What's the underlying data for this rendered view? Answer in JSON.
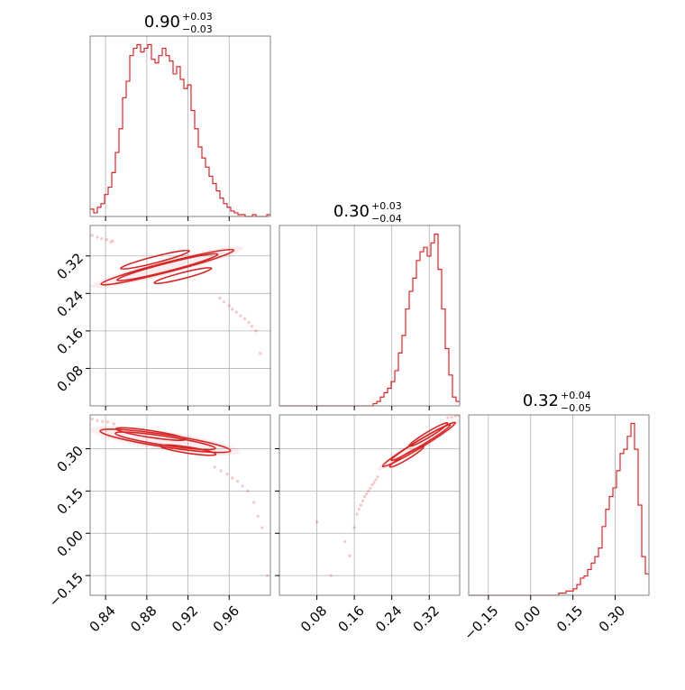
{
  "colors": {
    "accent": "#d62728",
    "frame": "#808080",
    "grid": "#b0b0b0"
  },
  "titles": [
    {
      "value": "0.90",
      "plus": "+0.03",
      "minus": "−0.03"
    },
    {
      "value": "0.30",
      "plus": "+0.03",
      "minus": "−0.04"
    },
    {
      "value": "0.32",
      "plus": "+0.04",
      "minus": "−0.05"
    }
  ],
  "chart_data": {
    "type": "corner",
    "grid": true,
    "parameters": [
      {
        "range": [
          0.825,
          1.0
        ],
        "ticks": [
          0.84,
          0.88,
          0.92,
          0.96
        ],
        "tick_labels": [
          "0.84",
          "0.88",
          "0.92",
          "0.96"
        ]
      },
      {
        "range": [
          0.0,
          0.385
        ],
        "ticks": [
          0.08,
          0.16,
          0.24,
          0.32
        ],
        "tick_labels": [
          "0.08",
          "0.16",
          "0.24",
          "0.32"
        ]
      },
      {
        "range": [
          -0.22,
          0.42
        ],
        "ticks": [
          -0.15,
          0.0,
          0.15,
          0.3
        ],
        "tick_labels": [
          "−0.15",
          "0.00",
          "0.15",
          "0.30"
        ]
      }
    ],
    "histograms": [
      {
        "param": 0,
        "edges": [
          0.825,
          0.8285,
          0.832,
          0.8355,
          0.839,
          0.8425,
          0.846,
          0.8495,
          0.853,
          0.8565,
          0.86,
          0.8635,
          0.867,
          0.8705,
          0.874,
          0.8775,
          0.881,
          0.8845,
          0.888,
          0.8915,
          0.895,
          0.8985,
          0.902,
          0.9055,
          0.909,
          0.9125,
          0.916,
          0.9195,
          0.923,
          0.9265,
          0.93,
          0.9335,
          0.937,
          0.9405,
          0.944,
          0.9475,
          0.951,
          0.9545,
          0.958,
          0.9615,
          0.965,
          0.9685,
          0.972,
          0.9755,
          0.979,
          0.9825,
          0.986,
          0.9895,
          0.993,
          0.9965,
          1.0
        ],
        "counts": [
          4,
          2,
          5,
          7,
          12,
          16,
          24,
          35,
          48,
          65,
          74,
          88,
          92,
          94,
          90,
          92,
          94,
          86,
          84,
          88,
          92,
          88,
          85,
          78,
          82,
          75,
          70,
          72,
          58,
          48,
          38,
          32,
          27,
          22,
          18,
          14,
          10,
          7,
          5,
          3,
          2,
          1,
          1,
          0,
          0,
          1,
          0,
          0,
          0,
          1
        ]
      },
      {
        "param": 1,
        "edges": [
          0.0,
          0.0077,
          0.0154,
          0.0231,
          0.0308,
          0.0385,
          0.0462,
          0.0539,
          0.0616,
          0.0693,
          0.077,
          0.0847,
          0.0924,
          0.1001,
          0.1078,
          0.1155,
          0.1232,
          0.1309,
          0.1386,
          0.1463,
          0.154,
          0.1617,
          0.1694,
          0.1771,
          0.1848,
          0.1925,
          0.2002,
          0.2079,
          0.2156,
          0.2233,
          0.231,
          0.2387,
          0.2464,
          0.2541,
          0.2618,
          0.2695,
          0.2772,
          0.2849,
          0.2926,
          0.3003,
          0.308,
          0.3157,
          0.3234,
          0.3311,
          0.3388,
          0.3465,
          0.3542,
          0.3619,
          0.3696,
          0.3773,
          0.385
        ],
        "counts": [
          0,
          0,
          0,
          0,
          0,
          0,
          0,
          0,
          0,
          0,
          0,
          0,
          0,
          0,
          0,
          0,
          0,
          0,
          0,
          0,
          0,
          0,
          0,
          0,
          0,
          0,
          1,
          2,
          4,
          6,
          8,
          11,
          16,
          24,
          32,
          44,
          52,
          58,
          66,
          70,
          72,
          68,
          74,
          78,
          62,
          44,
          26,
          14,
          4,
          2
        ]
      },
      {
        "param": 2,
        "edges": [
          -0.22,
          -0.2072,
          -0.1944,
          -0.1816,
          -0.1688,
          -0.156,
          -0.1432,
          -0.1304,
          -0.1176,
          -0.1048,
          -0.092,
          -0.0792,
          -0.0664,
          -0.0536,
          -0.0408,
          -0.028,
          -0.0152,
          -0.0024,
          0.0104,
          0.0232,
          0.036,
          0.0488,
          0.0616,
          0.0744,
          0.0872,
          0.1,
          0.1128,
          0.1256,
          0.1384,
          0.1512,
          0.164,
          0.1768,
          0.1896,
          0.2024,
          0.2152,
          0.228,
          0.2408,
          0.2536,
          0.2664,
          0.2792,
          0.292,
          0.3048,
          0.3176,
          0.3304,
          0.3432,
          0.356,
          0.3688,
          0.3816,
          0.3944,
          0.4072,
          0.42
        ],
        "counts": [
          0,
          0,
          0,
          0,
          0,
          0,
          0,
          0,
          0,
          0,
          0,
          0,
          0,
          0,
          0,
          0,
          0,
          0,
          0,
          0,
          0,
          0,
          0,
          0,
          0,
          1,
          1,
          2,
          2,
          3,
          5,
          8,
          9,
          12,
          15,
          18,
          22,
          32,
          40,
          46,
          50,
          58,
          66,
          68,
          74,
          80,
          68,
          42,
          18,
          10
        ]
      }
    ],
    "scatter_panels": [
      {
        "x_param": 0,
        "y_param": 1,
        "points": [
          [
            0.827,
            0.364
          ],
          [
            0.832,
            0.36
          ],
          [
            0.836,
            0.357
          ],
          [
            0.841,
            0.355
          ],
          [
            0.845,
            0.35
          ],
          [
            0.847,
            0.352
          ],
          [
            0.951,
            0.23
          ],
          [
            0.955,
            0.222
          ],
          [
            0.96,
            0.214
          ],
          [
            0.963,
            0.206
          ],
          [
            0.967,
            0.2
          ],
          [
            0.971,
            0.192
          ],
          [
            0.975,
            0.186
          ],
          [
            0.979,
            0.178
          ],
          [
            0.982,
            0.17
          ],
          [
            0.986,
            0.16
          ],
          [
            0.99,
            0.112
          ]
        ],
        "contours": [
          {
            "center": [
              0.9,
              0.296
            ],
            "rx": 0.058,
            "ry": 0.0105,
            "angle_deg": -150.6
          },
          {
            "center": [
              0.9,
              0.296
            ],
            "rx": 0.044,
            "ry": 0.0085,
            "angle_deg": -150.6
          },
          {
            "center": [
              0.888,
              0.312
            ],
            "rx": 0.03,
            "ry": 0.0068,
            "angle_deg": -150.6
          },
          {
            "center": [
              0.915,
              0.278
            ],
            "rx": 0.025,
            "ry": 0.0064,
            "angle_deg": -150.6
          }
        ]
      },
      {
        "x_param": 0,
        "y_param": 2,
        "points": [
          [
            0.827,
            0.405
          ],
          [
            0.832,
            0.4
          ],
          [
            0.837,
            0.397
          ],
          [
            0.842,
            0.395
          ],
          [
            0.848,
            0.388
          ],
          [
            0.946,
            0.235
          ],
          [
            0.952,
            0.222
          ],
          [
            0.958,
            0.21
          ],
          [
            0.963,
            0.196
          ],
          [
            0.968,
            0.185
          ],
          [
            0.973,
            0.168
          ],
          [
            0.978,
            0.15
          ],
          [
            0.984,
            0.11
          ],
          [
            0.988,
            0.06
          ],
          [
            0.992,
            0.02
          ],
          [
            0.997,
            -0.15
          ]
        ],
        "contours": [
          {
            "center": [
              0.898,
              0.328
            ],
            "rx": 0.056,
            "ry": 0.022,
            "angle_deg": -29
          },
          {
            "center": [
              0.898,
              0.328
            ],
            "rx": 0.043,
            "ry": 0.016,
            "angle_deg": -29
          },
          {
            "center": [
              0.884,
              0.352
            ],
            "rx": 0.03,
            "ry": 0.012,
            "angle_deg": -29
          },
          {
            "center": [
              0.92,
              0.295
            ],
            "rx": 0.024,
            "ry": 0.011,
            "angle_deg": -29
          }
        ]
      },
      {
        "x_param": 1,
        "y_param": 2,
        "points": [
          [
            0.21,
            0.2
          ],
          [
            0.206,
            0.19
          ],
          [
            0.202,
            0.18
          ],
          [
            0.198,
            0.172
          ],
          [
            0.194,
            0.16
          ],
          [
            0.19,
            0.15
          ],
          [
            0.186,
            0.14
          ],
          [
            0.182,
            0.13
          ],
          [
            0.178,
            0.115
          ],
          [
            0.174,
            0.1
          ],
          [
            0.17,
            0.085
          ],
          [
            0.166,
            0.068
          ],
          [
            0.16,
            0.02
          ],
          [
            0.15,
            -0.08
          ],
          [
            0.14,
            -0.03
          ],
          [
            0.08,
            0.04
          ],
          [
            0.11,
            -0.15
          ],
          [
            0.36,
            0.41
          ],
          [
            0.368,
            0.412
          ],
          [
            0.376,
            0.416
          ],
          [
            0.382,
            0.418
          ]
        ],
        "contours": [
          {
            "center": [
              0.298,
              0.315
            ],
            "rx": 0.064,
            "ry": 0.013,
            "angle_deg": 45
          },
          {
            "center": [
              0.302,
              0.322
            ],
            "rx": 0.052,
            "ry": 0.01,
            "angle_deg": 45
          },
          {
            "center": [
              0.318,
              0.35
            ],
            "rx": 0.034,
            "ry": 0.0085,
            "angle_deg": 45
          },
          {
            "center": [
              0.272,
              0.272
            ],
            "rx": 0.03,
            "ry": 0.0075,
            "angle_deg": 45
          }
        ]
      }
    ]
  }
}
